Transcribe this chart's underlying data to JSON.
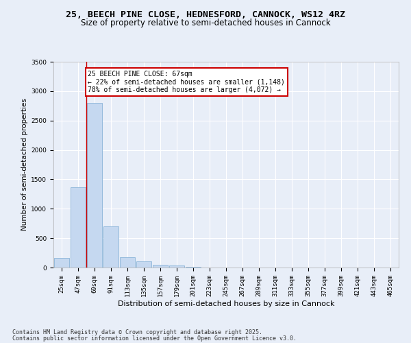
{
  "title_line1": "25, BEECH PINE CLOSE, HEDNESFORD, CANNOCK, WS12 4RZ",
  "title_line2": "Size of property relative to semi-detached houses in Cannock",
  "xlabel": "Distribution of semi-detached houses by size in Cannock",
  "ylabel": "Number of semi-detached properties",
  "categories": [
    "25sqm",
    "47sqm",
    "69sqm",
    "91sqm",
    "113sqm",
    "135sqm",
    "157sqm",
    "179sqm",
    "201sqm",
    "223sqm",
    "245sqm",
    "267sqm",
    "289sqm",
    "311sqm",
    "333sqm",
    "355sqm",
    "377sqm",
    "399sqm",
    "421sqm",
    "443sqm",
    "465sqm"
  ],
  "values": [
    160,
    1370,
    2800,
    700,
    175,
    110,
    45,
    30,
    10,
    0,
    0,
    0,
    0,
    0,
    0,
    0,
    0,
    0,
    0,
    0,
    0
  ],
  "bar_color": "#c5d8f0",
  "bar_edge_color": "#8ab4d8",
  "highlight_line_color": "#cc0000",
  "annotation_text": "25 BEECH PINE CLOSE: 67sqm\n← 22% of semi-detached houses are smaller (1,148)\n78% of semi-detached houses are larger (4,072) →",
  "annotation_box_color": "#cc0000",
  "ylim": [
    0,
    3500
  ],
  "yticks": [
    0,
    500,
    1000,
    1500,
    2000,
    2500,
    3000,
    3500
  ],
  "footer_line1": "Contains HM Land Registry data © Crown copyright and database right 2025.",
  "footer_line2": "Contains public sector information licensed under the Open Government Licence v3.0.",
  "bg_color": "#e8eef8",
  "plot_bg_color": "#e8eef8",
  "grid_color": "#ffffff",
  "title_fontsize": 9.5,
  "subtitle_fontsize": 8.5,
  "ylabel_fontsize": 7.5,
  "xlabel_fontsize": 8,
  "tick_fontsize": 6.5,
  "annot_fontsize": 7,
  "footer_fontsize": 6
}
